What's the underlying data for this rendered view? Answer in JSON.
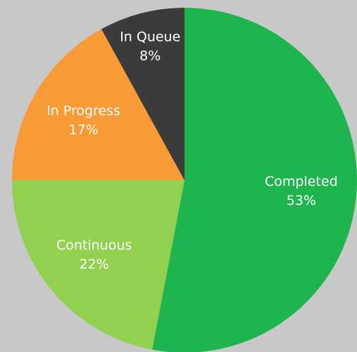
{
  "chart_data": {
    "type": "pie",
    "categories": [
      "Completed",
      "Continuous",
      "In Progress",
      "In Queue"
    ],
    "values": [
      53,
      22,
      17,
      8
    ],
    "value_labels": [
      "53%",
      "22%",
      "17%",
      "8%"
    ],
    "colors": [
      "#1fb54e",
      "#92d050",
      "#f89a35",
      "#3b3b3b"
    ]
  }
}
